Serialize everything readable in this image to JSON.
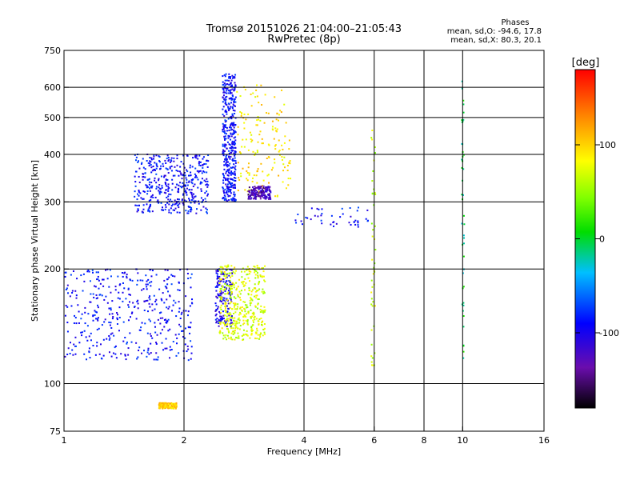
{
  "chart_data": {
    "type": "scatter",
    "title": "Tromsø 20151026 21:04:00–21:05:43",
    "subtitle": "RwPretec (8p)",
    "stats": {
      "heading": "Phases",
      "line_o": "mean, sd,O: -94.6, 17.8",
      "line_x": "mean, sd,X: 80.3, 20.1"
    },
    "xlabel": "Frequency [MHz]",
    "ylabel": "Stationary phase Virtual Height [km]",
    "x_scale": "log",
    "y_scale": "log",
    "xlim": [
      1,
      16
    ],
    "ylim": [
      75,
      750
    ],
    "x_ticks": [
      1,
      2,
      4,
      6,
      8,
      10,
      16
    ],
    "x_tick_labels": [
      "1",
      "2",
      "4",
      "6",
      "8",
      "10",
      "16"
    ],
    "x_gridlines": [
      2,
      4,
      6,
      8,
      10
    ],
    "y_ticks": [
      75,
      100,
      200,
      300,
      400,
      500,
      600,
      750
    ],
    "y_tick_labels": [
      "75",
      "100",
      "200",
      "300",
      "400",
      "500",
      "600",
      "750"
    ],
    "y_gridlines": [
      100,
      200,
      300,
      400,
      500,
      600
    ],
    "grid": true,
    "colorbar": {
      "label": "[deg]",
      "range": [
        -180,
        180
      ],
      "ticks": [
        100,
        0,
        -100
      ],
      "tick_labels": [
        "100",
        "0",
        "-100"
      ],
      "placement": "right"
    },
    "clusters": [
      {
        "region": "low F 1-2.1 MHz",
        "f": [
          1.0,
          2.1
        ],
        "h": [
          115,
          200
        ],
        "phase": -100,
        "density": "high"
      },
      {
        "region": "low F 2.1-2.5 MHz",
        "f": [
          2.4,
          2.65
        ],
        "h": [
          140,
          200
        ],
        "phase": -110,
        "density": "medium"
      },
      {
        "region": "low F yellow-green",
        "f": [
          2.45,
          3.2
        ],
        "h": [
          130,
          205
        ],
        "phase": 70,
        "density": "high"
      },
      {
        "region": "F trace blue",
        "f": [
          1.5,
          2.3
        ],
        "h": [
          280,
          400
        ],
        "phase": -100,
        "density": "high"
      },
      {
        "region": "F trace blue 2.5 MHz",
        "f": [
          2.5,
          2.7
        ],
        "h": [
          300,
          650
        ],
        "phase": -100,
        "density": "high"
      },
      {
        "region": "F trace mixed 2.6-3.6 MHz",
        "f": [
          2.7,
          3.7
        ],
        "h": [
          310,
          610
        ],
        "phase": 90,
        "density": "medium"
      },
      {
        "region": "F trace purple",
        "f": [
          2.9,
          3.3
        ],
        "h": [
          305,
          330
        ],
        "phase": -140,
        "density": "medium"
      },
      {
        "region": "F descending",
        "f": [
          3.8,
          5.9
        ],
        "h": [
          258,
          290
        ],
        "phase": -100,
        "density": "low"
      },
      {
        "region": "blob 1.75-1.9 MHz",
        "f": [
          1.73,
          1.92
        ],
        "h": [
          86,
          89
        ],
        "phase": 100,
        "density": "medium"
      },
      {
        "region": "vertical 5.9 MHz",
        "f": [
          5.9,
          6.05
        ],
        "h": [
          110,
          480
        ],
        "phase": 60,
        "density": "low"
      },
      {
        "region": "vertical 10 MHz",
        "f": [
          9.95,
          10.1
        ],
        "h": [
          115,
          640
        ],
        "phase": -10,
        "density": "low"
      }
    ]
  }
}
